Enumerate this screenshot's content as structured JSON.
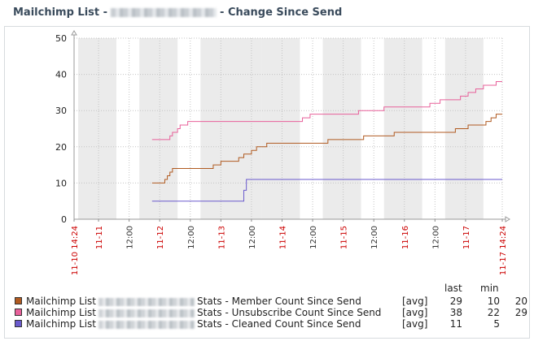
{
  "title": {
    "prefix": "Mailchimp List -",
    "suffix": "- Change Since Send"
  },
  "chart_data": {
    "type": "line",
    "ylim": [
      0,
      50
    ],
    "yticks": [
      0,
      10,
      20,
      30,
      40,
      50
    ],
    "xrange": [
      "2023-11-10T14:24",
      "2023-11-17T14:24"
    ],
    "xticks": [
      {
        "t": "2023-11-10T14:24",
        "label": "11-10 14:24",
        "color": "#cc0000"
      },
      {
        "t": "2023-11-11T00:00",
        "label": "11-11",
        "color": "#cc0000"
      },
      {
        "t": "2023-11-11T12:00",
        "label": "12:00",
        "color": "#333333"
      },
      {
        "t": "2023-11-12T00:00",
        "label": "11-12",
        "color": "#cc0000"
      },
      {
        "t": "2023-11-12T12:00",
        "label": "12:00",
        "color": "#333333"
      },
      {
        "t": "2023-11-13T00:00",
        "label": "11-13",
        "color": "#cc0000"
      },
      {
        "t": "2023-11-13T12:00",
        "label": "12:00",
        "color": "#333333"
      },
      {
        "t": "2023-11-14T00:00",
        "label": "11-14",
        "color": "#cc0000"
      },
      {
        "t": "2023-11-14T12:00",
        "label": "12:00",
        "color": "#333333"
      },
      {
        "t": "2023-11-15T00:00",
        "label": "11-15",
        "color": "#cc0000"
      },
      {
        "t": "2023-11-15T12:00",
        "label": "12:00",
        "color": "#333333"
      },
      {
        "t": "2023-11-16T00:00",
        "label": "11-16",
        "color": "#cc0000"
      },
      {
        "t": "2023-11-16T12:00",
        "label": "12:00",
        "color": "#333333"
      },
      {
        "t": "2023-11-17T00:00",
        "label": "11-17",
        "color": "#cc0000"
      },
      {
        "t": "2023-11-17T14:24",
        "label": "11-17 14:24",
        "color": "#cc0000"
      }
    ],
    "night_bands": [
      [
        "2023-11-10T16:00",
        "2023-11-11T07:00"
      ],
      [
        "2023-11-11T16:00",
        "2023-11-12T07:00"
      ],
      [
        "2023-11-12T16:00",
        "2023-11-13T16:00"
      ],
      [
        "2023-11-13T16:00",
        "2023-11-14T07:00"
      ],
      [
        "2023-11-14T16:00",
        "2023-11-15T07:00"
      ],
      [
        "2023-11-15T16:00",
        "2023-11-16T07:00"
      ],
      [
        "2023-11-16T16:00",
        "2023-11-17T07:00"
      ]
    ],
    "grid": true,
    "series": [
      {
        "name": "Stats - Member Count Since Send",
        "color": "#b05a20",
        "points": [
          [
            "2023-11-11T21:00",
            10
          ],
          [
            "2023-11-12T02:00",
            11
          ],
          [
            "2023-11-12T03:00",
            12
          ],
          [
            "2023-11-12T04:00",
            13
          ],
          [
            "2023-11-12T05:00",
            14
          ],
          [
            "2023-11-12T21:00",
            15
          ],
          [
            "2023-11-13T00:00",
            16
          ],
          [
            "2023-11-13T07:00",
            17
          ],
          [
            "2023-11-13T09:00",
            18
          ],
          [
            "2023-11-13T12:00",
            19
          ],
          [
            "2023-11-13T14:00",
            20
          ],
          [
            "2023-11-13T18:00",
            21
          ],
          [
            "2023-11-14T18:00",
            22
          ],
          [
            "2023-11-15T08:00",
            23
          ],
          [
            "2023-11-15T20:00",
            24
          ],
          [
            "2023-11-16T20:00",
            25
          ],
          [
            "2023-11-17T01:00",
            26
          ],
          [
            "2023-11-17T08:00",
            27
          ],
          [
            "2023-11-17T10:00",
            28
          ],
          [
            "2023-11-17T12:00",
            29
          ],
          [
            "2023-11-17T14:24",
            29
          ]
        ]
      },
      {
        "name": "Stats - Unsubscribe Count Since Send",
        "color": "#e8609a",
        "points": [
          [
            "2023-11-11T21:00",
            22
          ],
          [
            "2023-11-12T04:00",
            23
          ],
          [
            "2023-11-12T05:00",
            24
          ],
          [
            "2023-11-12T07:00",
            25
          ],
          [
            "2023-11-12T08:00",
            26
          ],
          [
            "2023-11-12T11:00",
            27
          ],
          [
            "2023-11-14T08:00",
            28
          ],
          [
            "2023-11-14T11:00",
            29
          ],
          [
            "2023-11-15T06:00",
            30
          ],
          [
            "2023-11-15T16:00",
            31
          ],
          [
            "2023-11-16T10:00",
            32
          ],
          [
            "2023-11-16T14:00",
            33
          ],
          [
            "2023-11-16T22:00",
            34
          ],
          [
            "2023-11-17T01:00",
            35
          ],
          [
            "2023-11-17T04:00",
            36
          ],
          [
            "2023-11-17T07:00",
            37
          ],
          [
            "2023-11-17T12:00",
            38
          ],
          [
            "2023-11-17T14:24",
            38
          ]
        ]
      },
      {
        "name": "Stats - Cleaned Count Since Send",
        "color": "#6a5acd",
        "points": [
          [
            "2023-11-11T21:00",
            5
          ],
          [
            "2023-11-13T08:00",
            5
          ],
          [
            "2023-11-13T09:00",
            8
          ],
          [
            "2023-11-13T10:00",
            11
          ],
          [
            "2023-11-17T14:24",
            11
          ]
        ]
      }
    ]
  },
  "legend": {
    "prefix": "Mailchimp List",
    "headers": {
      "last": "last",
      "min": "min"
    },
    "rows": [
      {
        "suffix": "Stats - Member Count Since Send",
        "func": "[avg]",
        "last": "29",
        "min": "10",
        "max": "20",
        "color": "#b05a20"
      },
      {
        "suffix": "Stats - Unsubscribe Count Since Send",
        "func": "[avg]",
        "last": "38",
        "min": "22",
        "max": "29",
        "color": "#e8609a"
      },
      {
        "suffix": "Stats - Cleaned Count Since Send",
        "func": "[avg]",
        "last": "11",
        "min": "5",
        "max": "",
        "color": "#6a5acd"
      }
    ]
  }
}
